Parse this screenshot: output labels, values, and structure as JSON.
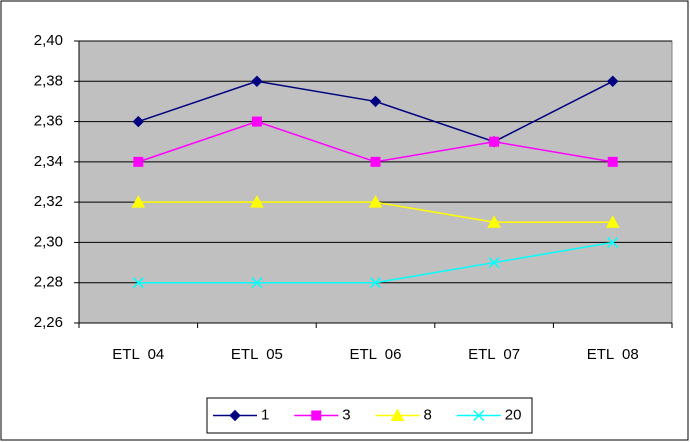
{
  "chart_data": {
    "type": "line",
    "categories": [
      "ETL  04",
      "ETL  05",
      "ETL  06",
      "ETL  07",
      "ETL  08"
    ],
    "series": [
      {
        "name": "1",
        "color": "#000080",
        "marker": "diamond",
        "values": [
          2.36,
          2.38,
          2.37,
          2.35,
          2.38
        ]
      },
      {
        "name": "3",
        "color": "#ff00ff",
        "marker": "square",
        "values": [
          2.34,
          2.36,
          2.34,
          2.35,
          2.34
        ]
      },
      {
        "name": "8",
        "color": "#ffff00",
        "marker": "triangle",
        "values": [
          2.32,
          2.32,
          2.32,
          2.31,
          2.31
        ]
      },
      {
        "name": "20",
        "color": "#00ffff",
        "marker": "x",
        "values": [
          2.28,
          2.28,
          2.28,
          2.29,
          2.3
        ]
      }
    ],
    "ylim": [
      2.26,
      2.4
    ],
    "yticks": [
      {
        "value": 2.26,
        "label": "2,26"
      },
      {
        "value": 2.28,
        "label": "2,28"
      },
      {
        "value": 2.3,
        "label": "2,30"
      },
      {
        "value": 2.32,
        "label": "2,32"
      },
      {
        "value": 2.34,
        "label": "2,34"
      },
      {
        "value": 2.36,
        "label": "2,36"
      },
      {
        "value": 2.38,
        "label": "2,38"
      },
      {
        "value": 2.4,
        "label": "2,40"
      }
    ],
    "grid": true,
    "legend": "bottom",
    "plot_background": "#c0c0c0"
  }
}
